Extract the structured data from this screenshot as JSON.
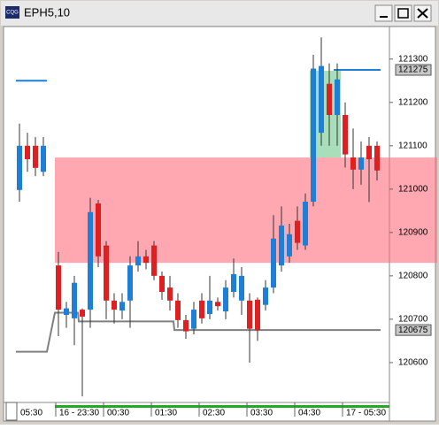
{
  "window": {
    "title": "EPH5,10",
    "icon": "CQG"
  },
  "chart_data": {
    "type": "candlestick",
    "categories": [
      "05:30",
      null,
      null,
      null,
      "16 - 23:30",
      null,
      null,
      null,
      null,
      null,
      "00:30",
      null,
      null,
      null,
      null,
      null,
      "01:30",
      null,
      null,
      null,
      null,
      null,
      "02:30",
      null,
      null,
      null,
      null,
      null,
      "03:30",
      null,
      null,
      null,
      null,
      null,
      "04:30",
      null,
      null,
      null,
      null,
      null,
      "17 - 05:30",
      null,
      null,
      null,
      null
    ],
    "open": [
      120998,
      121100,
      121100,
      121040,
      120824,
      120710,
      120702,
      120722,
      120722,
      120967,
      120870,
      120743,
      120720,
      120743,
      120824,
      120845,
      120870,
      120800,
      120773,
      120743,
      120698,
      120678,
      120743,
      120712,
      120740,
      120718,
      120763,
      120743,
      120743,
      120745,
      120733,
      120773,
      120824,
      120845,
      120927,
      120870,
      120971,
      121130,
      121243,
      121171,
      121171,
      121073,
      121045,
      121100,
      121100
    ],
    "high": [
      121151,
      121130,
      121120,
      121120,
      120855,
      120740,
      120800,
      120725,
      120980,
      120975,
      120880,
      120760,
      120760,
      120845,
      120880,
      120860,
      120880,
      120810,
      120800,
      120760,
      120710,
      120740,
      120760,
      120800,
      120750,
      120790,
      120840,
      120820,
      120760,
      120750,
      120790,
      120940,
      120960,
      120920,
      120960,
      120990,
      121310,
      121350,
      121290,
      121290,
      121200,
      121140,
      121110,
      121120,
      121110
    ],
    "low": [
      120971,
      121040,
      121030,
      121030,
      120661,
      120680,
      120640,
      120522,
      120680,
      120820,
      120700,
      120690,
      120700,
      120680,
      120810,
      120815,
      120790,
      120745,
      120720,
      120680,
      120655,
      120665,
      120690,
      120700,
      120720,
      120700,
      120750,
      120710,
      120600,
      120650,
      120720,
      120760,
      120810,
      120830,
      120860,
      120860,
      120960,
      121100,
      121100,
      121100,
      121050,
      121000,
      121010,
      120970,
      121020
    ],
    "close": [
      121100,
      121069,
      121049,
      121100,
      120722,
      120725,
      120784,
      120706,
      120947,
      120845,
      120743,
      120722,
      120740,
      120824,
      120845,
      120830,
      120800,
      120763,
      120743,
      120698,
      120672,
      120722,
      120702,
      120743,
      120730,
      120773,
      120804,
      120800,
      120678,
      120675,
      120773,
      120886,
      120916,
      120896,
      120876,
      120971,
      121278,
      121284,
      121171,
      121253,
      121080,
      121045,
      121073,
      121069,
      121043
    ],
    "up_color": "#1e7fd6",
    "down_color": "#e02020",
    "lines": [
      {
        "color": "#1e7fd6",
        "values": [
          121250,
          121250,
          121250,
          121250,
          null,
          null,
          null,
          null,
          null,
          null,
          null,
          null,
          null,
          null,
          null,
          null,
          null,
          null,
          null,
          null,
          null,
          null,
          null,
          null,
          null,
          null,
          null,
          null,
          null,
          null,
          null,
          null,
          null,
          null,
          null,
          null,
          null,
          null,
          null,
          121275,
          121275,
          121275,
          121275,
          121275,
          121275
        ]
      },
      {
        "color": "#808080",
        "values": [
          120625,
          120625,
          120625,
          120625,
          120715,
          120715,
          120715,
          120695,
          120695,
          120695,
          120695,
          120695,
          120695,
          120695,
          120695,
          120695,
          120695,
          120695,
          120695,
          120675,
          120675,
          120675,
          120675,
          120675,
          120675,
          120675,
          120675,
          120675,
          120675,
          120675,
          120675,
          120675,
          120675,
          120675,
          120675,
          120675,
          120675,
          120675,
          120675,
          120675,
          120675,
          120675,
          120675,
          120675,
          120675
        ]
      }
    ],
    "zones": [
      {
        "low": 120830,
        "high": 121073,
        "start": 4,
        "end": 44,
        "color": "rgba(255,110,125,0.6)"
      },
      {
        "low": 121073,
        "high": 121273,
        "start": 36,
        "end": 39,
        "color": "rgba(110,200,140,0.6)"
      }
    ],
    "ylim": [
      120508,
      121375
    ],
    "yticks": [
      120600,
      120700,
      120800,
      120900,
      121000,
      121100,
      121200,
      121300
    ],
    "price_markers": [
      121275,
      120675
    ]
  }
}
